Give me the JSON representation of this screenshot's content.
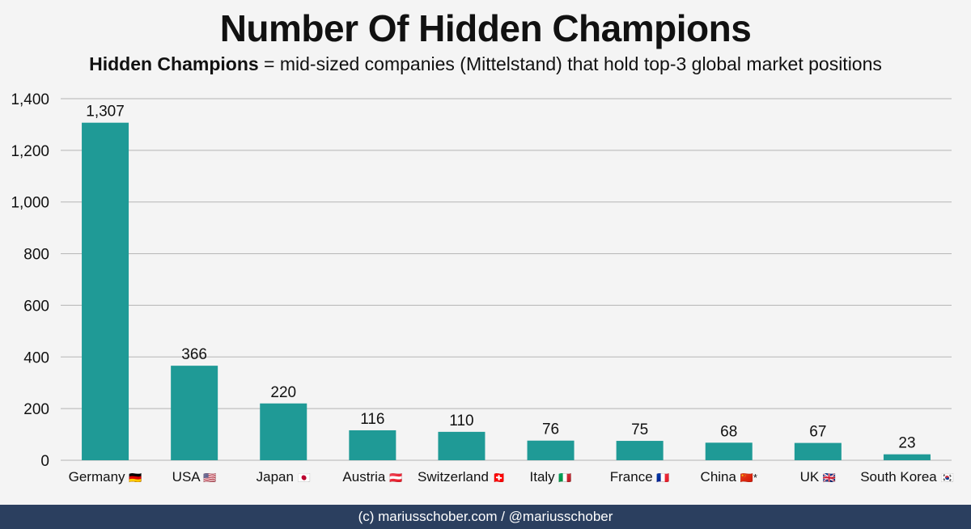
{
  "title": "Number Of Hidden Champions",
  "subtitle": {
    "term": "Hidden Champions",
    "definition": " = mid-sized companies (Mittelstand) that hold top-3 global market positions"
  },
  "footer": "(c) mariusschober.com / @mariusschober",
  "colors": {
    "bar": "#1f9a96",
    "grid": "#b5b5b5",
    "footer_bg": "#2b3f5f"
  },
  "chart_data": {
    "type": "bar",
    "title": "Number Of Hidden Champions",
    "xlabel": "",
    "ylabel": "",
    "ylim": [
      0,
      1400
    ],
    "yticks": [
      0,
      200,
      400,
      600,
      800,
      1000,
      1200,
      1400
    ],
    "ytick_labels": [
      "0",
      "200",
      "400",
      "600",
      "800",
      "1,000",
      "1,200",
      "1,400"
    ],
    "grid": true,
    "categories": [
      "Germany",
      "USA",
      "Japan",
      "Austria",
      "Switzerland",
      "Italy",
      "France",
      "China",
      "UK",
      "South Korea"
    ],
    "category_flags": [
      "🇩🇪",
      "🇺🇸",
      "🇯🇵",
      "🇦🇹",
      "🇨🇭",
      "🇮🇹",
      "🇫🇷",
      "🇨🇳",
      "🇬🇧",
      "🇰🇷"
    ],
    "category_suffix": [
      "",
      "",
      "",
      "",
      "",
      "",
      "",
      "*",
      "",
      ""
    ],
    "values": [
      1307,
      366,
      220,
      116,
      110,
      76,
      75,
      68,
      67,
      23
    ],
    "value_labels": [
      "1,307",
      "366",
      "220",
      "116",
      "110",
      "76",
      "75",
      "68",
      "67",
      "23"
    ]
  }
}
